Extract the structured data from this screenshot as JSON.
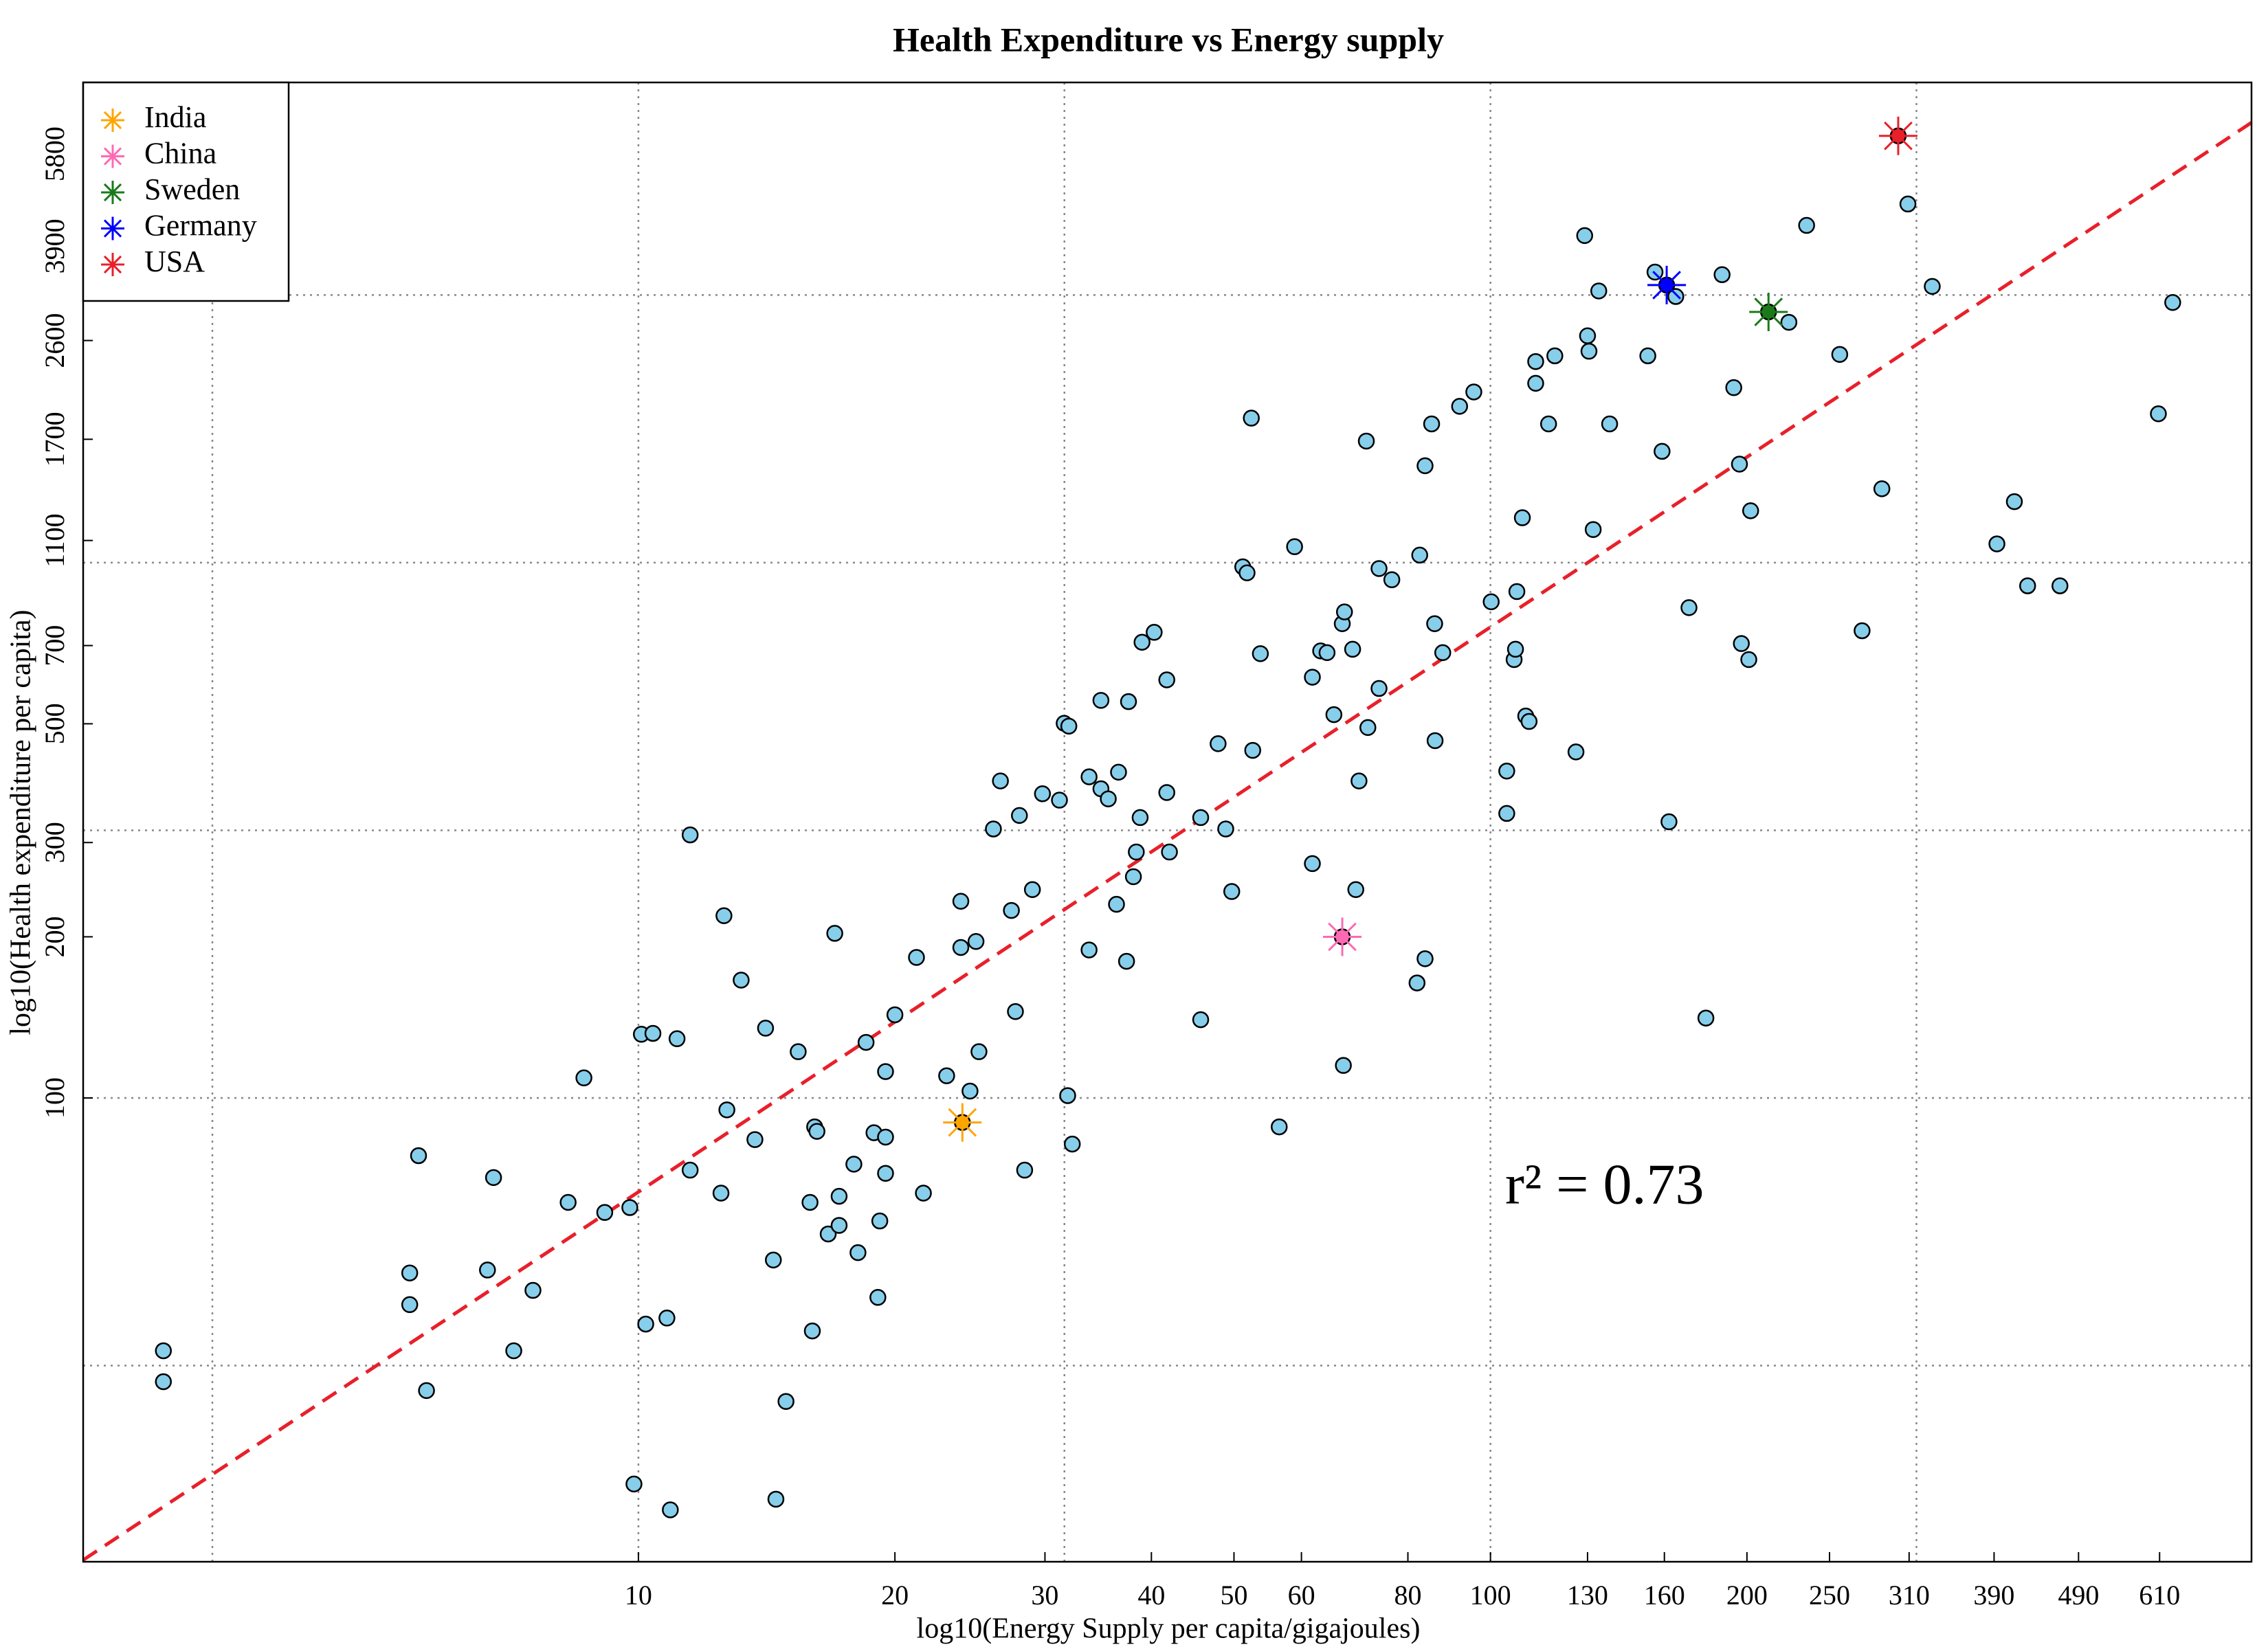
{
  "chart_data": {
    "type": "scatter",
    "title": "Health Expenditure vs Energy supply",
    "xlabel": "log10(Energy Supply per capita/gigajoules)",
    "ylabel": "log10(Health expenditure per capita)",
    "xscale": "log",
    "yscale": "log",
    "xlim": [
      2.23,
      782
    ],
    "ylim": [
      13.6,
      7890
    ],
    "xticks": [
      10,
      20,
      30,
      40,
      50,
      60,
      80,
      100,
      130,
      160,
      200,
      250,
      310,
      390,
      490,
      610
    ],
    "yticks": [
      100,
      200,
      300,
      500,
      700,
      1100,
      1700,
      2600,
      3900,
      5800
    ],
    "xgrid": [
      3.162,
      10,
      31.62,
      100,
      316.2
    ],
    "ygrid": [
      31.62,
      100,
      316.2,
      1000,
      3162
    ],
    "grid": true,
    "legend": "upper left",
    "points": {
      "color": "#87ceeb",
      "x": [
        2.77,
        2.77,
        5.52,
        5.39,
        5.39,
        5.64,
        6.76,
        6.65,
        7.52,
        7.14,
        8.27,
        8.63,
        9.13,
        9.77,
        10.08,
        10.4,
        10.2,
        10.8,
        9.88,
        10.9,
        11.1,
        11.5,
        11.5,
        12.6,
        12.7,
        12.5,
        13.2,
        13.7,
        14.1,
        14.4,
        14.9,
        14.5,
        15.4,
        15.9,
        16.0,
        16.1,
        16.2,
        17.0,
        16.7,
        17.2,
        17.2,
        17.9,
        18.1,
        18.5,
        18.9,
        19.1,
        19.2,
        19.5,
        19.5,
        19.5,
        20.0,
        21.2,
        21.6,
        23.0,
        23.9,
        23.9,
        24.5,
        24.9,
        25.1,
        26.1,
        26.6,
        27.4,
        27.7,
        28.0,
        28.4,
        29.0,
        29.8,
        31.2,
        31.6,
        32.0,
        31.9,
        32.3,
        33.8,
        33.8,
        34.9,
        34.9,
        35.6,
        36.4,
        36.6,
        37.6,
        37.4,
        38.1,
        38.4,
        38.8,
        39.0,
        40.3,
        41.7,
        41.7,
        42.0,
        45.7,
        45.7,
        47.9,
        48.9,
        49.7,
        51.2,
        51.8,
        52.6,
        52.4,
        53.7,
        56.5,
        58.9,
        61.8,
        61.8,
        63.2,
        64.3,
        65.5,
        67.0,
        67.4,
        67.2,
        68.9,
        69.5,
        70.1,
        71.5,
        71.8,
        74.0,
        74.0,
        76.6,
        82.0,
        83.8,
        82.6,
        83.8,
        85.3,
        86.0,
        86.1,
        87.9,
        92.0,
        95.6,
        100.2,
        104.5,
        104.5,
        106.6,
        107,
        107.4,
        109,
        110,
        111,
        113,
        113,
        117,
        119,
        126,
        130,
        130.5,
        129,
        132,
        134,
        138,
        153,
        156,
        159,
        162,
        165,
        171,
        179,
        187,
        193,
        196,
        197,
        202,
        201,
        224,
        235,
        257,
        273,
        288,
        309,
        330,
        393,
        412,
        427,
        466,
        608,
        632
      ],
      "y": [
        33.7,
        29.5,
        78,
        47.1,
        41.1,
        28.4,
        71,
        47.7,
        43.7,
        33.7,
        63.8,
        109,
        61.1,
        62.4,
        131.5,
        132,
        37.8,
        38.8,
        19.0,
        17.0,
        129,
        310,
        73.3,
        219,
        95,
        66.4,
        166,
        83.6,
        135,
        49.8,
        27.1,
        17.8,
        122,
        63.8,
        36.7,
        88.3,
        86.6,
        203,
        55.7,
        65.5,
        57.8,
        75.2,
        51.4,
        127,
        86.1,
        42.4,
        58.9,
        84.5,
        72.3,
        112,
        143,
        183,
        66.4,
        110,
        191,
        233,
        103,
        196,
        122,
        318,
        391,
        224,
        145,
        337,
        73.3,
        245,
        370,
        360,
        501,
        495,
        101,
        82,
        398,
        189,
        553,
        378,
        362,
        230,
        406,
        550,
        180,
        259,
        288,
        334,
        710,
        741,
        604,
        372,
        288,
        140,
        334,
        459,
        318,
        243,
        982,
        957,
        446,
        1862,
        676,
        88.3,
        1071,
        274,
        611,
        684,
        679,
        520,
        769,
        809,
        115,
        689,
        245,
        391,
        1687,
        492,
        582,
        975,
        929,
        164,
        182,
        1033,
        1517,
        1816,
        769,
        465,
        679,
        1959,
        2084,
        845,
        408,
        340,
        659,
        689,
        883,
        1213,
        517,
        505,
        2163,
        2375,
        1816,
        2434,
        443,
        2653,
        2483,
        4083,
        1153,
        3218,
        1816,
        2434,
        3490,
        1614,
        328,
        3142,
        824,
        141,
        3451,
        2123,
        1528,
        706,
        1250,
        659,
        2812,
        4266,
        2449,
        746,
        1374,
        4677,
        3281,
        1084,
        1300,
        905,
        905,
        1897,
        3062
      ]
    },
    "series": [
      {
        "name": "India",
        "color": "#ffa500",
        "x": [
          24
        ],
        "y": [
          90
        ]
      },
      {
        "name": "China",
        "color": "#ff69b4",
        "x": [
          67
        ],
        "y": [
          200
        ]
      },
      {
        "name": "Sweden",
        "color": "#1a7a1a",
        "x": [
          212
        ],
        "y": [
          2940
        ]
      },
      {
        "name": "Germany",
        "color": "#0000ff",
        "x": [
          161
        ],
        "y": [
          3300
        ]
      },
      {
        "name": "USA",
        "color": "#e8202a",
        "x": [
          301
        ],
        "y": [
          6270
        ]
      }
    ],
    "fit_line": {
      "color": "#e8202a",
      "x": [
        2.23,
        782
      ],
      "y": [
        13.7,
        6640
      ]
    },
    "annotation": "r² = 0.73",
    "annotation_color": "#ff0000"
  }
}
